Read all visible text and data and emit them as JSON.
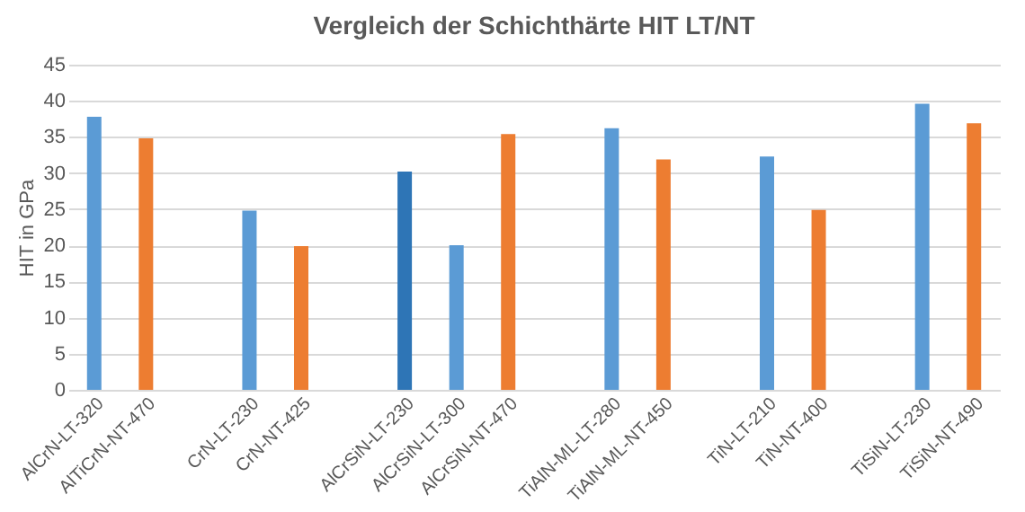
{
  "chart_data": {
    "type": "bar",
    "title": "Vergleich der Schichthärte HIT LT/NT",
    "ylabel": "HIT in GPa",
    "categories": [
      "AlCrN-LT-320",
      "AlTiCrN-NT-470",
      null,
      "CrN-LT-230",
      "CrN-NT-425",
      null,
      "AlCrSiN-LT-230",
      "AlCrSiN-LT-300",
      "AlCrSiN-NT-470",
      null,
      "TiAlN-ML-LT-280",
      "TiAlN-ML-NT-450",
      null,
      "TiN-LT-210",
      "TiN-NT-400",
      null,
      "TiSiN-LT-230",
      "TiSiN-NT-490"
    ],
    "values": [
      37.8,
      34.8,
      null,
      24.8,
      19.9,
      null,
      30.2,
      20,
      35.4,
      null,
      36.2,
      31.9,
      null,
      32.3,
      24.9,
      null,
      39.6,
      36.9
    ],
    "colors": [
      "#5b9bd5",
      "#ed7d31",
      null,
      "#5b9bd5",
      "#ed7d31",
      null,
      "#2e75b6",
      "#5b9bd5",
      "#ed7d31",
      null,
      "#5b9bd5",
      "#ed7d31",
      null,
      "#5b9bd5",
      "#ed7d31",
      null,
      "#5b9bd5",
      "#ed7d31"
    ],
    "ylim": [
      0,
      45
    ],
    "yticks": [
      0,
      5,
      10,
      15,
      20,
      25,
      30,
      35,
      40,
      45
    ],
    "grid": "y"
  }
}
